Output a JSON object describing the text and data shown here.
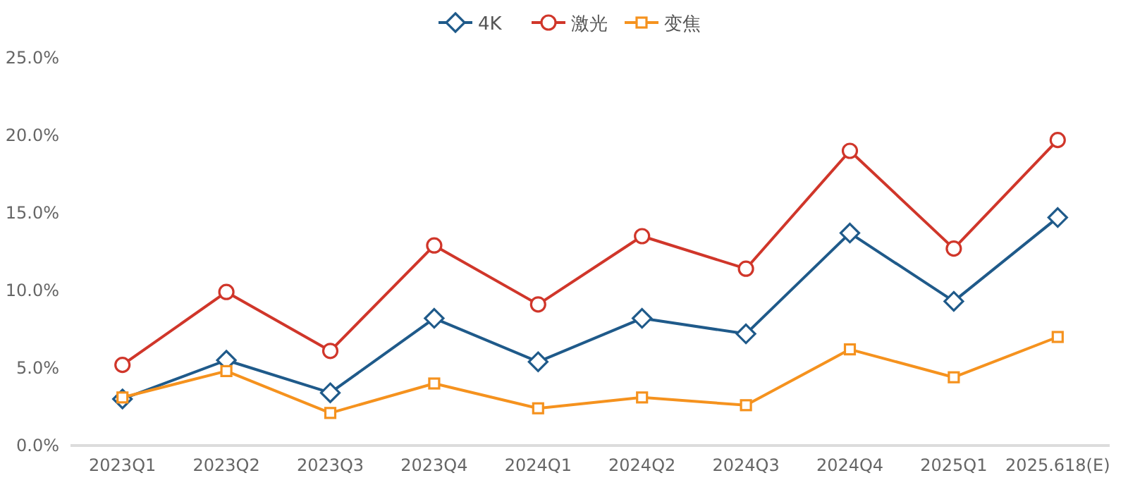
{
  "chart_data": {
    "type": "line",
    "categories": [
      "2023Q1",
      "2023Q2",
      "2023Q3",
      "2023Q4",
      "2024Q1",
      "2024Q2",
      "2024Q3",
      "2024Q4",
      "2025Q1",
      "2025.618(E)"
    ],
    "series": [
      {
        "name": "4K",
        "color": "#1f5a8a",
        "marker": "diamond",
        "values": [
          3.0,
          5.5,
          3.4,
          8.2,
          5.4,
          8.2,
          7.2,
          13.7,
          9.3,
          14.7
        ]
      },
      {
        "name": "激光",
        "color": "#d0362a",
        "marker": "circle",
        "values": [
          5.2,
          9.9,
          6.1,
          12.9,
          9.1,
          13.5,
          11.4,
          19.0,
          12.7,
          19.7
        ]
      },
      {
        "name": "变焦",
        "color": "#f5921e",
        "marker": "square",
        "values": [
          3.1,
          4.8,
          2.1,
          4.0,
          2.4,
          3.1,
          2.6,
          6.2,
          4.4,
          7.0
        ]
      }
    ],
    "ylim": [
      0,
      25
    ],
    "yticks": [
      {
        "value": 0,
        "label": "0.0%"
      },
      {
        "value": 5,
        "label": "5.0%"
      },
      {
        "value": 10,
        "label": "10.0%"
      },
      {
        "value": 15,
        "label": "15.0%"
      },
      {
        "value": 20,
        "label": "20.0%"
      },
      {
        "value": 25,
        "label": "25.0%"
      }
    ],
    "grid": false,
    "legend": "top",
    "line_style": "solid"
  }
}
